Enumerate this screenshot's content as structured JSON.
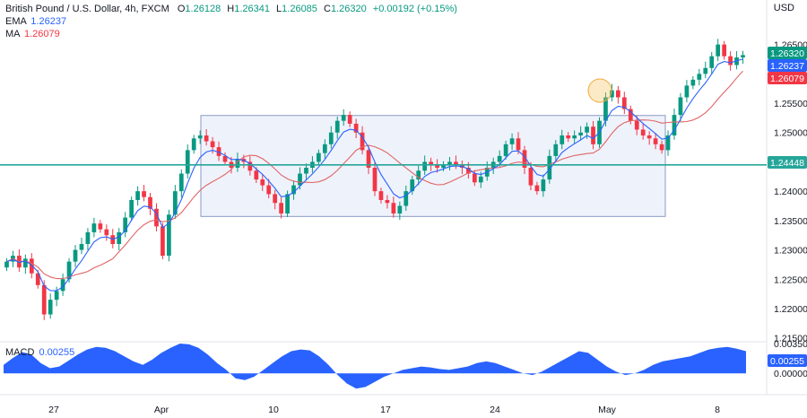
{
  "header": {
    "symbol": "British Pound / U.S. Dollar, 4h, FXCM",
    "open_label": "O",
    "open": "1.26128",
    "high_label": "H",
    "high": "1.26341",
    "low_label": "L",
    "low": "1.26085",
    "close_label": "C",
    "close": "1.26320",
    "change": "+0.00192 (+0.15%)",
    "ema_label": "EMA",
    "ema_value": "1.26237",
    "ma_label": "MA",
    "ma_value": "1.26079",
    "currency": "USD"
  },
  "macd": {
    "label": "MACD",
    "value": "0.00255",
    "axis_ticks": [
      "0.00350",
      "0.00000"
    ]
  },
  "price_tags": {
    "close": "1.26320",
    "ema": "1.26237",
    "ma": "1.26079",
    "level": "1.24448"
  },
  "colors": {
    "up": "#089981",
    "down": "#f23645",
    "ema": "#2962ff",
    "ma": "#e06666",
    "level": "#26a69a",
    "box_fill": "#e8edfa",
    "box_stroke": "#7e8fbf",
    "macd_fill": "#2962ff",
    "highlight": "#f6c25b"
  },
  "chart_data": {
    "type": "candlestick",
    "symbol": "GBPUSD",
    "timeframe": "4h",
    "y_axis": {
      "ticks": [
        "1.26500",
        "1.25500",
        "1.25000",
        "1.24000",
        "1.23500",
        "1.23000",
        "1.22500",
        "1.22000",
        "1.21500"
      ],
      "ylim": [
        1.2148,
        1.268
      ]
    },
    "x_axis": {
      "ticks": [
        "27",
        "Apr",
        "10",
        "17",
        "24",
        "May",
        "8"
      ]
    },
    "horizontal_level": 1.24448,
    "range_box": {
      "top": 1.2529,
      "bottom": 1.2357
    },
    "close_path": [
      [
        1.228,
        1.229,
        1.227,
        1.2285,
        1.226,
        1.224,
        1.219,
        1.2215,
        1.223,
        1.225,
        1.228,
        1.23,
        1.231,
        1.233,
        1.2345,
        1.2335,
        1.2325,
        1.231,
        1.233,
        1.2355,
        1.2385,
        1.24,
        1.239,
        1.237,
        1.234,
        1.229,
        1.236,
        1.24,
        1.243,
        1.247,
        1.249,
        1.2495,
        1.2485,
        1.2475,
        1.246,
        1.245,
        1.244,
        1.2455,
        1.245,
        1.2435,
        1.242,
        1.241,
        1.2395,
        1.238,
        1.2362,
        1.2395,
        1.241,
        1.243,
        1.244,
        1.245,
        1.2465,
        1.248,
        1.25,
        1.252,
        1.253,
        1.2515,
        1.25,
        1.247,
        1.244,
        1.24,
        1.2385,
        1.238,
        1.2362,
        1.2375,
        1.24,
        1.242,
        1.2435,
        1.245,
        1.2445,
        1.244,
        1.2445,
        1.245,
        1.2445,
        1.244,
        1.243,
        1.2415,
        1.2425,
        1.244,
        1.245,
        1.246,
        1.248,
        1.249,
        1.247,
        1.244,
        1.241,
        1.24,
        1.242,
        1.246,
        1.248,
        1.2495,
        1.249,
        1.2495,
        1.25,
        1.251,
        1.248,
        1.252,
        1.256,
        1.2572,
        1.256,
        1.254,
        1.252,
        1.2505,
        1.2495,
        1.249,
        1.248,
        1.247,
        1.2495,
        1.253,
        1.256,
        1.258,
        1.259,
        1.26,
        1.261,
        1.263,
        1.265,
        1.263,
        1.2615,
        1.2628,
        1.2632
      ]
    ],
    "macd_values": [
      0.001,
      0.0018,
      0.0025,
      0.0022,
      0.0012,
      0.0006,
      0.0008,
      0.0015,
      0.0022,
      0.0028,
      0.0031,
      0.003,
      0.0026,
      0.002,
      0.0014,
      0.001,
      0.0016,
      0.0024,
      0.003,
      0.0035,
      0.0034,
      0.003,
      0.0022,
      0.0012,
      0.0004,
      -0.0006,
      -0.0008,
      -0.0004,
      0.0004,
      0.0012,
      0.002,
      0.0026,
      0.0028,
      0.0027,
      0.002,
      0.001,
      -0.0002,
      -0.0012,
      -0.0018,
      -0.0016,
      -0.001,
      -0.0004,
      0.0,
      0.0004,
      0.0006,
      0.0008,
      0.0007,
      0.0005,
      0.0004,
      0.0006,
      0.0008,
      0.0012,
      0.0014,
      0.0012,
      0.0008,
      0.0004,
      0.0,
      -0.0002,
      0.0002,
      0.0008,
      0.0014,
      0.002,
      0.0026,
      0.0024,
      0.0016,
      0.0008,
      0.0002,
      -0.0002,
      0.0,
      0.0004,
      0.001,
      0.0014,
      0.0016,
      0.0018,
      0.002,
      0.0024,
      0.0028,
      0.003,
      0.0031,
      0.0029,
      0.0026
    ],
    "macd_ylim": [
      -0.0023,
      0.0035
    ]
  }
}
